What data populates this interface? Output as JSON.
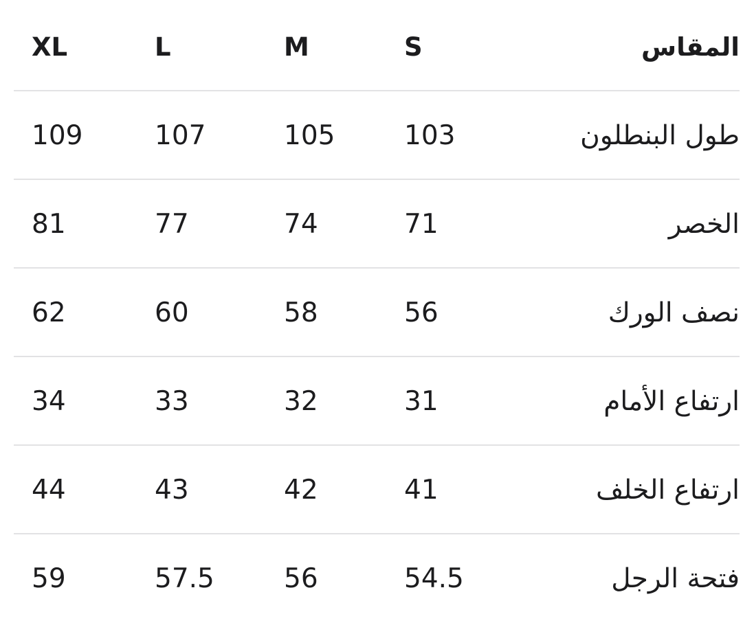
{
  "header": {
    "label": "المقاس",
    "sizes": [
      "S",
      "M",
      "L",
      "XL"
    ]
  },
  "rows": [
    {
      "label": "طول البنطلون",
      "values": [
        "103",
        "105",
        "107",
        "109"
      ]
    },
    {
      "label": "الخصر",
      "values": [
        "71",
        "74",
        "77",
        "81"
      ]
    },
    {
      "label": "نصف الورك",
      "values": [
        "56",
        "58",
        "60",
        "62"
      ]
    },
    {
      "label": "ارتفاع الأمام",
      "values": [
        "31",
        "32",
        "33",
        "34"
      ]
    },
    {
      "label": "ارتفاع الخلف",
      "values": [
        "41",
        "42",
        "43",
        "44"
      ]
    },
    {
      "label": "فتحة الرجل",
      "values": [
        "54.5",
        "56",
        "57.5",
        "59"
      ]
    }
  ]
}
